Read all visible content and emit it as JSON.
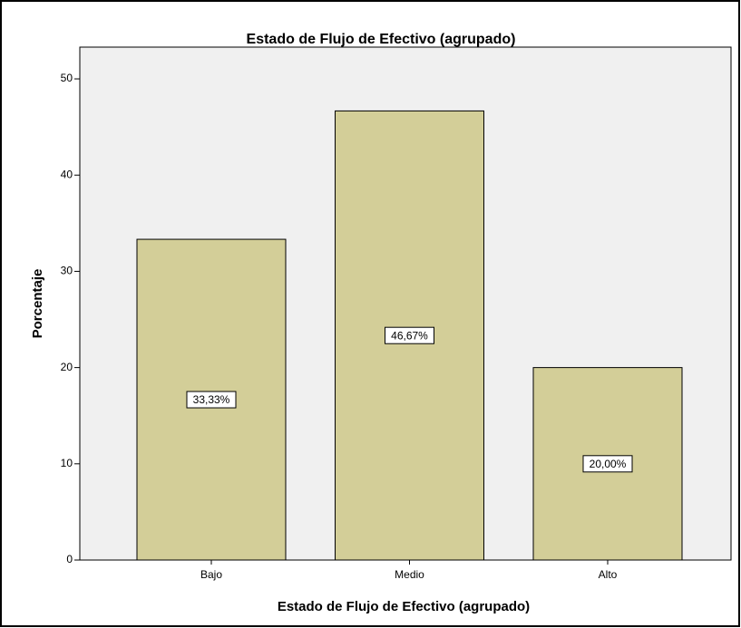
{
  "chart_data": {
    "type": "bar",
    "title": "Estado de Flujo de Efectivo (agrupado)",
    "x_label": "Estado de Flujo de Efectivo (agrupado)",
    "y_label": "Porcentaje",
    "categories": [
      "Bajo",
      "Medio",
      "Alto"
    ],
    "values": [
      33.33,
      46.67,
      20.0
    ],
    "value_labels": [
      "33,33%",
      "46,67%",
      "20,00%"
    ],
    "color": "#d3ce98",
    "ylim": [
      0,
      53.3
    ],
    "yticks": [
      0,
      10,
      20,
      30,
      40,
      50
    ],
    "grid": false
  }
}
